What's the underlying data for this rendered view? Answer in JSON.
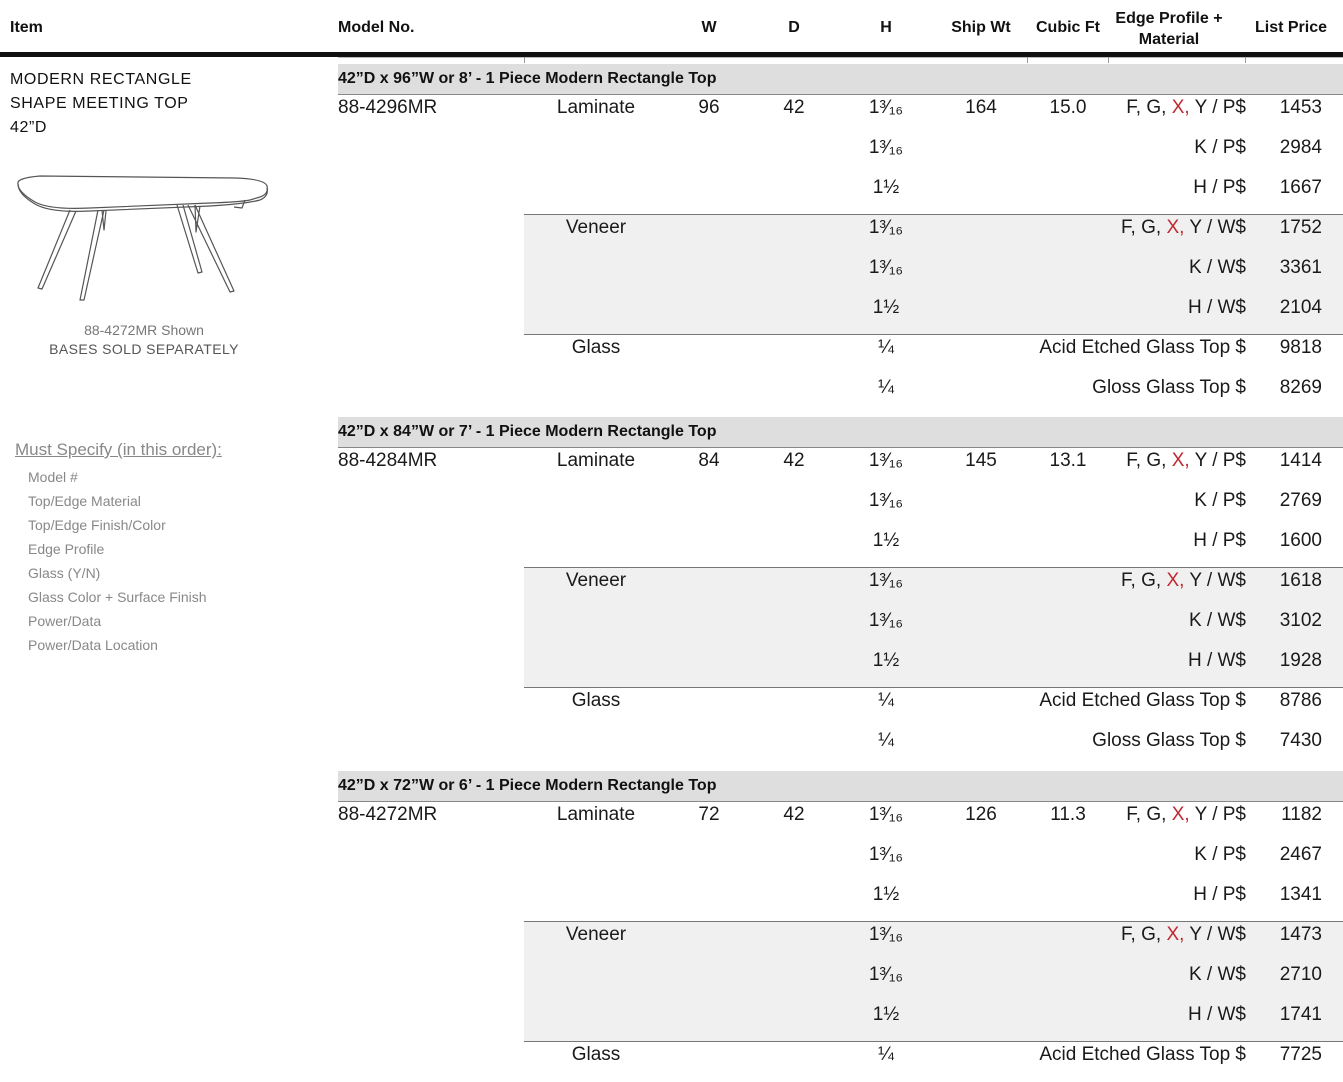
{
  "header": {
    "item": "Item",
    "model": "Model No.",
    "w": "W",
    "d": "D",
    "h": "H",
    "ship": "Ship Wt",
    "cubic": "Cubic Ft",
    "edge_line1": "Edge Profile +",
    "edge_line2": "Material",
    "price": "List Price"
  },
  "product": {
    "title_lines": [
      "MODERN RECTANGLE",
      "SHAPE MEETING TOP",
      "42”D"
    ],
    "image_caption": "88-4272MR Shown",
    "bases_note": "BASES SOLD SEPARATELY"
  },
  "specify": {
    "title": "Must Specify (in this order):",
    "items": [
      "Model #",
      "Top/Edge Material",
      "Top/Edge Finish/Color",
      "Edge Profile",
      "Glass (Y/N)",
      "Glass Color + Surface Finish",
      "Power/Data",
      "Power/Data Location"
    ]
  },
  "groups": [
    {
      "title": "42”D x 96”W or 8’ - 1 Piece Modern Rectangle Top",
      "model": "88-4296MR",
      "w": "96",
      "d": "42",
      "ship": "164",
      "cubic": "15.0",
      "rows": [
        {
          "material": "Laminate",
          "h": "1³⁄₁₆",
          "edge_pre": "F, G, ",
          "edge_red": "X,",
          "edge_post": " Y / P$",
          "price": "1453"
        },
        {
          "material": "",
          "h": "1³⁄₁₆",
          "edge_pre": "",
          "edge_red": "",
          "edge_post": "K / P$",
          "price": "2984"
        },
        {
          "material": "",
          "h": "1½",
          "edge_pre": "",
          "edge_red": "",
          "edge_post": "H / P$",
          "price": "1667"
        },
        {
          "material": "Veneer",
          "h": "1³⁄₁₆",
          "edge_pre": "F, G, ",
          "edge_red": "X,",
          "edge_post": " Y / W$",
          "price": "1752"
        },
        {
          "material": "",
          "h": "1³⁄₁₆",
          "edge_pre": "",
          "edge_red": "",
          "edge_post": "K / W$",
          "price": "3361"
        },
        {
          "material": "",
          "h": "1½",
          "edge_pre": "",
          "edge_red": "",
          "edge_post": "H / W$",
          "price": "2104"
        },
        {
          "material": "Glass",
          "h": "¼",
          "edge_pre": "",
          "edge_red": "",
          "edge_post": "Acid Etched Glass Top $",
          "price": "9818"
        },
        {
          "material": "",
          "h": "¼",
          "edge_pre": "",
          "edge_red": "",
          "edge_post": "Gloss Glass Top $",
          "price": "8269"
        }
      ]
    },
    {
      "title": "42”D x 84”W or 7’ - 1 Piece Modern Rectangle Top",
      "model": "88-4284MR",
      "w": "84",
      "d": "42",
      "ship": "145",
      "cubic": "13.1",
      "rows": [
        {
          "material": "Laminate",
          "h": "1³⁄₁₆",
          "edge_pre": "F, G, ",
          "edge_red": "X,",
          "edge_post": " Y / P$",
          "price": "1414"
        },
        {
          "material": "",
          "h": "1³⁄₁₆",
          "edge_pre": "",
          "edge_red": "",
          "edge_post": "K / P$",
          "price": "2769"
        },
        {
          "material": "",
          "h": "1½",
          "edge_pre": "",
          "edge_red": "",
          "edge_post": "H / P$",
          "price": "1600"
        },
        {
          "material": "Veneer",
          "h": "1³⁄₁₆",
          "edge_pre": "F, G, ",
          "edge_red": "X,",
          "edge_post": " Y / W$",
          "price": "1618"
        },
        {
          "material": "",
          "h": "1³⁄₁₆",
          "edge_pre": "",
          "edge_red": "",
          "edge_post": "K / W$",
          "price": "3102"
        },
        {
          "material": "",
          "h": "1½",
          "edge_pre": "",
          "edge_red": "",
          "edge_post": "H / W$",
          "price": "1928"
        },
        {
          "material": "Glass",
          "h": "¼",
          "edge_pre": "",
          "edge_red": "",
          "edge_post": "Acid Etched Glass Top $",
          "price": "8786"
        },
        {
          "material": "",
          "h": "¼",
          "edge_pre": "",
          "edge_red": "",
          "edge_post": "Gloss Glass Top $",
          "price": "7430"
        }
      ]
    },
    {
      "title": "42”D x 72”W or 6’ - 1 Piece Modern Rectangle Top",
      "model": "88-4272MR",
      "w": "72",
      "d": "42",
      "ship": "126",
      "cubic": "11.3",
      "rows": [
        {
          "material": "Laminate",
          "h": "1³⁄₁₆",
          "edge_pre": "F, G, ",
          "edge_red": "X,",
          "edge_post": " Y / P$",
          "price": "1182"
        },
        {
          "material": "",
          "h": "1³⁄₁₆",
          "edge_pre": "",
          "edge_red": "",
          "edge_post": "K / P$",
          "price": "2467"
        },
        {
          "material": "",
          "h": "1½",
          "edge_pre": "",
          "edge_red": "",
          "edge_post": "H / P$",
          "price": "1341"
        },
        {
          "material": "Veneer",
          "h": "1³⁄₁₆",
          "edge_pre": "F, G, ",
          "edge_red": "X,",
          "edge_post": " Y / W$",
          "price": "1473"
        },
        {
          "material": "",
          "h": "1³⁄₁₆",
          "edge_pre": "",
          "edge_red": "",
          "edge_post": "K / W$",
          "price": "2710"
        },
        {
          "material": "",
          "h": "1½",
          "edge_pre": "",
          "edge_red": "",
          "edge_post": "H / W$",
          "price": "1741"
        },
        {
          "material": "Glass",
          "h": "¼",
          "edge_pre": "",
          "edge_red": "",
          "edge_post": "Acid Etched Glass Top $",
          "price": "7725"
        }
      ]
    }
  ]
}
